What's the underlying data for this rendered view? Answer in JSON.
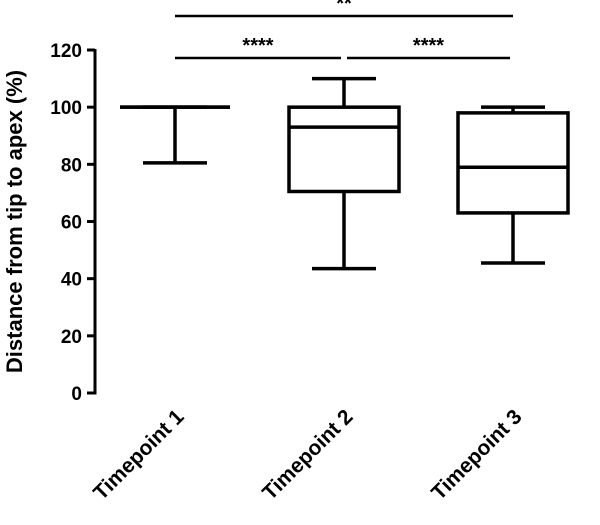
{
  "chart_data": {
    "type": "boxplot",
    "title": "",
    "xlabel": "",
    "ylabel": "Distance from tip to apex (%)",
    "ylim": [
      0,
      120
    ],
    "yticks": [
      0,
      20,
      40,
      60,
      80,
      100,
      120
    ],
    "categories": [
      "Timepoint 1",
      "Timepoint 2",
      "Timepoint 3"
    ],
    "boxes": [
      {
        "category": "Timepoint 1",
        "min": 80.5,
        "q1": 100,
        "median": 100,
        "q3": 100,
        "max": 100
      },
      {
        "category": "Timepoint 2",
        "min": 43.5,
        "q1": 70.5,
        "median": 93,
        "q3": 100,
        "max": 110
      },
      {
        "category": "Timepoint 3",
        "min": 45.5,
        "q1": 63,
        "median": 79,
        "q3": 98,
        "max": 100
      }
    ],
    "significance": [
      {
        "from": "Timepoint 1",
        "to": "Timepoint 3",
        "label": "**",
        "level": 2
      },
      {
        "from": "Timepoint 1",
        "to": "Timepoint 2",
        "label": "****",
        "level": 1
      },
      {
        "from": "Timepoint 2",
        "to": "Timepoint 3",
        "label": "****",
        "level": 1
      }
    ],
    "grid": false,
    "legend": "none"
  }
}
